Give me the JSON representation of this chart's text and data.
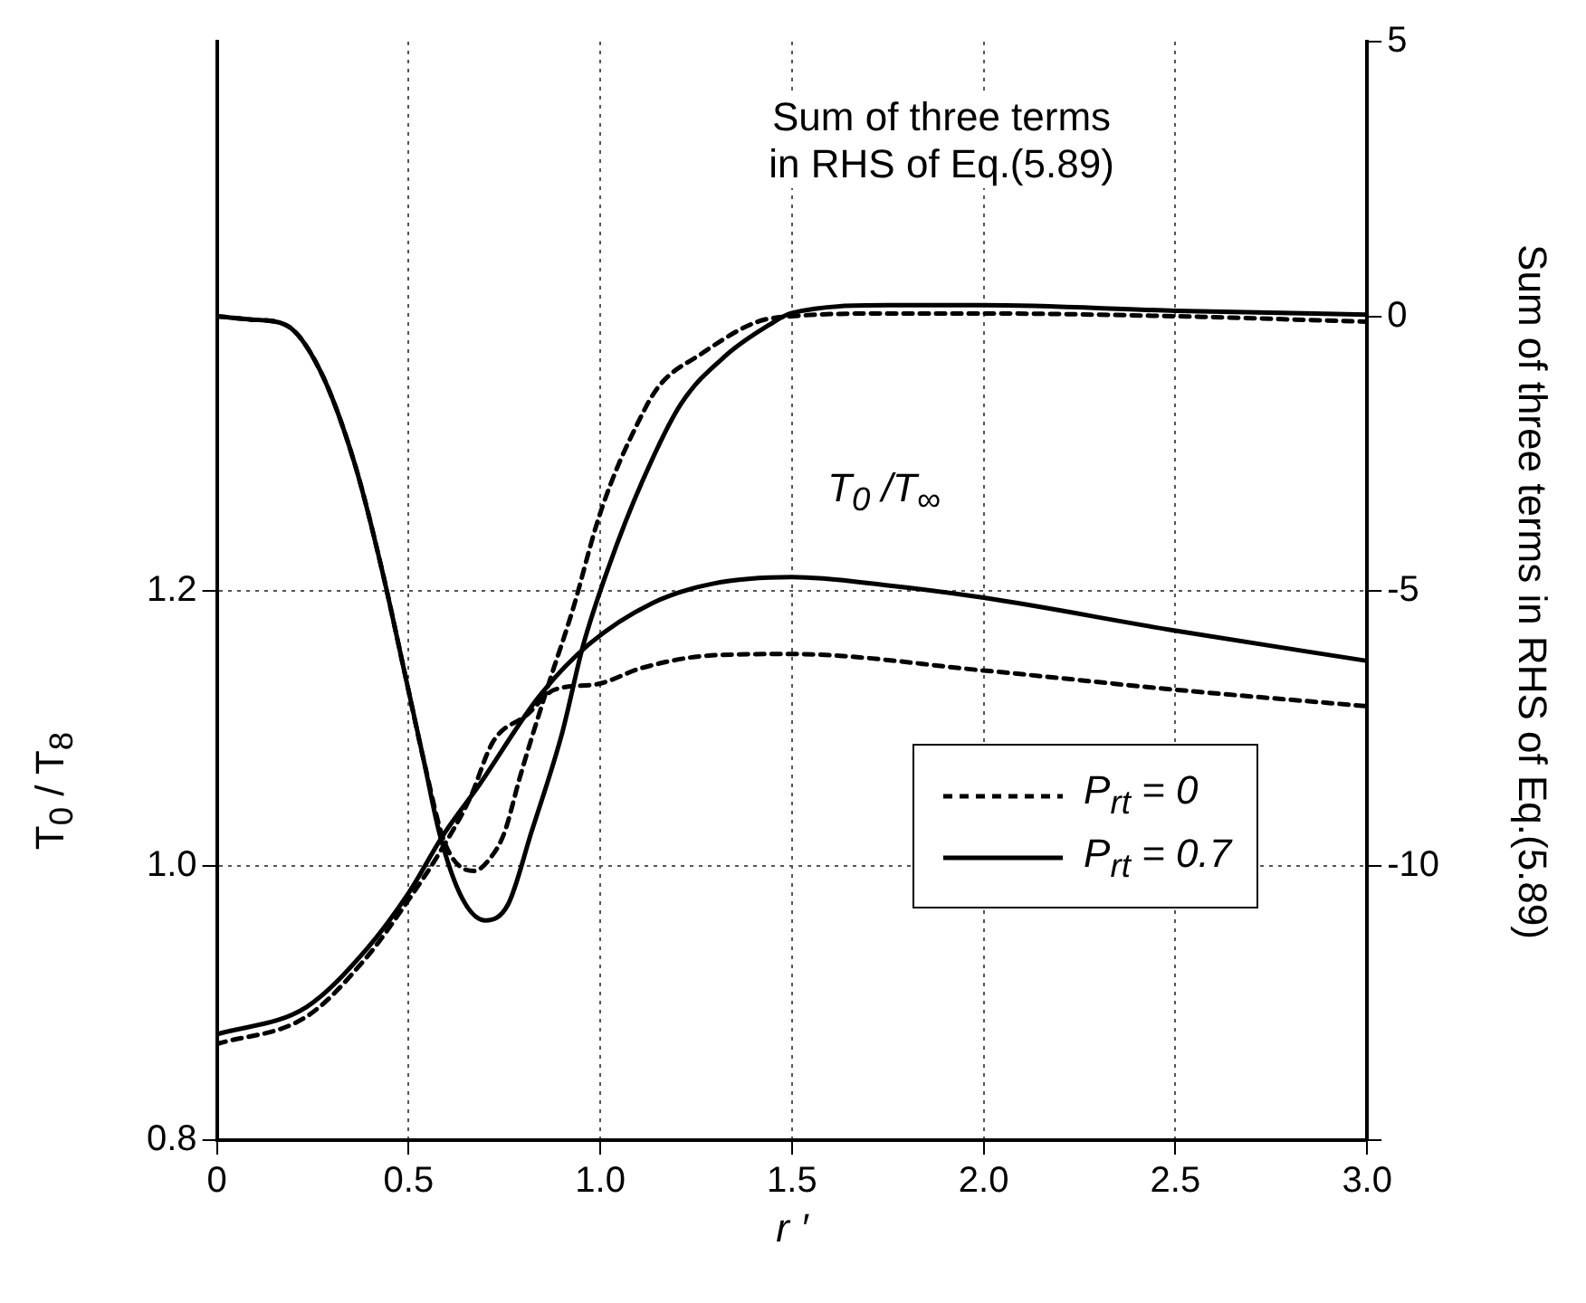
{
  "chart_data": {
    "type": "line",
    "xlabel": "r ′",
    "ylabel": "T$_{0}$ / T$_{8}$",
    "y2label": "Sum of three terms in RHS of Eq.(5.89)",
    "annotations": [
      "Sum of three terms\nin RHS of Eq.(5.89)",
      "T$_{0}$ /T$_{∞}$"
    ],
    "xlim": [
      0,
      3
    ],
    "xticks": [
      0,
      0.5,
      {
        "value": 1,
        "label": "1.0"
      },
      1.5,
      {
        "value": 2,
        "label": "2.0"
      },
      2.5,
      {
        "value": 3,
        "label": "3.0"
      }
    ],
    "ylim": [
      0.8,
      1.6
    ],
    "yticks": [
      0.8,
      {
        "value": 1,
        "label": "1.0"
      },
      1.2
    ],
    "y2lim": [
      -15,
      5
    ],
    "y2ticks": [
      5,
      0,
      -5,
      -10,
      {
        "value": -15,
        "label": null
      }
    ],
    "grid": true,
    "legend": "bottom right",
    "marker": "none",
    "series": [
      {
        "name": "P$_{rt}$ = 0",
        "color": "#000000",
        "line_style": "dashed",
        "axis": "y2",
        "x": [
          0,
          0.09,
          0.18,
          0.27,
          0.36,
          0.43,
          0.49,
          0.54,
          0.595,
          0.67,
          0.72,
          0.75,
          0.79,
          0.82,
          0.865,
          0.93,
          0.99,
          1.03,
          1.08,
          1.15,
          1.26,
          1.41,
          1.5,
          1.75,
          2,
          2.5,
          3
        ],
        "values": [
          0,
          -0.06,
          -0.16,
          -1,
          -2.7,
          -4.6,
          -6.5,
          -8.1,
          -9.6,
          -10.1,
          -9.8,
          -9.4,
          -8.4,
          -7.7,
          -6.7,
          -5.3,
          -3.8,
          -3,
          -2.2,
          -1.3,
          -0.7,
          -0.1,
          0,
          0.05,
          0.05,
          0,
          -0.1
        ]
      },
      {
        "name": "P$_{rt}$ = 0.7",
        "color": "#000000",
        "line_style": "solid",
        "axis": "y2",
        "x": [
          0,
          0.09,
          0.18,
          0.27,
          0.36,
          0.43,
          0.49,
          0.54,
          0.58,
          0.64,
          0.7,
          0.76,
          0.82,
          0.9,
          0.955,
          1.02,
          1.11,
          1.21,
          1.33,
          1.44,
          1.5,
          1.75,
          2,
          2.5,
          3
        ],
        "values": [
          0,
          -0.06,
          -0.16,
          -1,
          -2.7,
          -4.6,
          -6.5,
          -8.1,
          -9.4,
          -10.6,
          -11,
          -10.7,
          -9.4,
          -7.6,
          -6,
          -4.6,
          -3,
          -1.6,
          -0.7,
          -0.16,
          0.06,
          0.2,
          0.2,
          0.1,
          0.03
        ]
      },
      {
        "color": "#000000",
        "line_style": "dashed",
        "x": [
          0,
          0.234,
          0.387,
          0.5,
          0.58,
          0.66,
          0.72,
          0.81,
          0.88,
          0.99,
          1.11,
          1.29,
          1.5,
          2,
          2.5,
          3
        ],
        "values": [
          0.87,
          0.89,
          0.932,
          0.975,
          1.009,
          1.049,
          1.09,
          1.11,
          1.128,
          1.132,
          1.144,
          1.153,
          1.154,
          1.142,
          1.128,
          1.116
        ]
      },
      {
        "color": "#000000",
        "line_style": "solid",
        "x": [
          0,
          0.234,
          0.387,
          0.5,
          0.59,
          0.685,
          0.84,
          0.97,
          1.135,
          1.29,
          1.5,
          1.75,
          2,
          2.5,
          3
        ],
        "values": [
          0.877,
          0.897,
          0.938,
          0.98,
          1.022,
          1.059,
          1.123,
          1.161,
          1.191,
          1.205,
          1.21,
          1.204,
          1.195,
          1.171,
          1.149
        ]
      }
    ]
  }
}
